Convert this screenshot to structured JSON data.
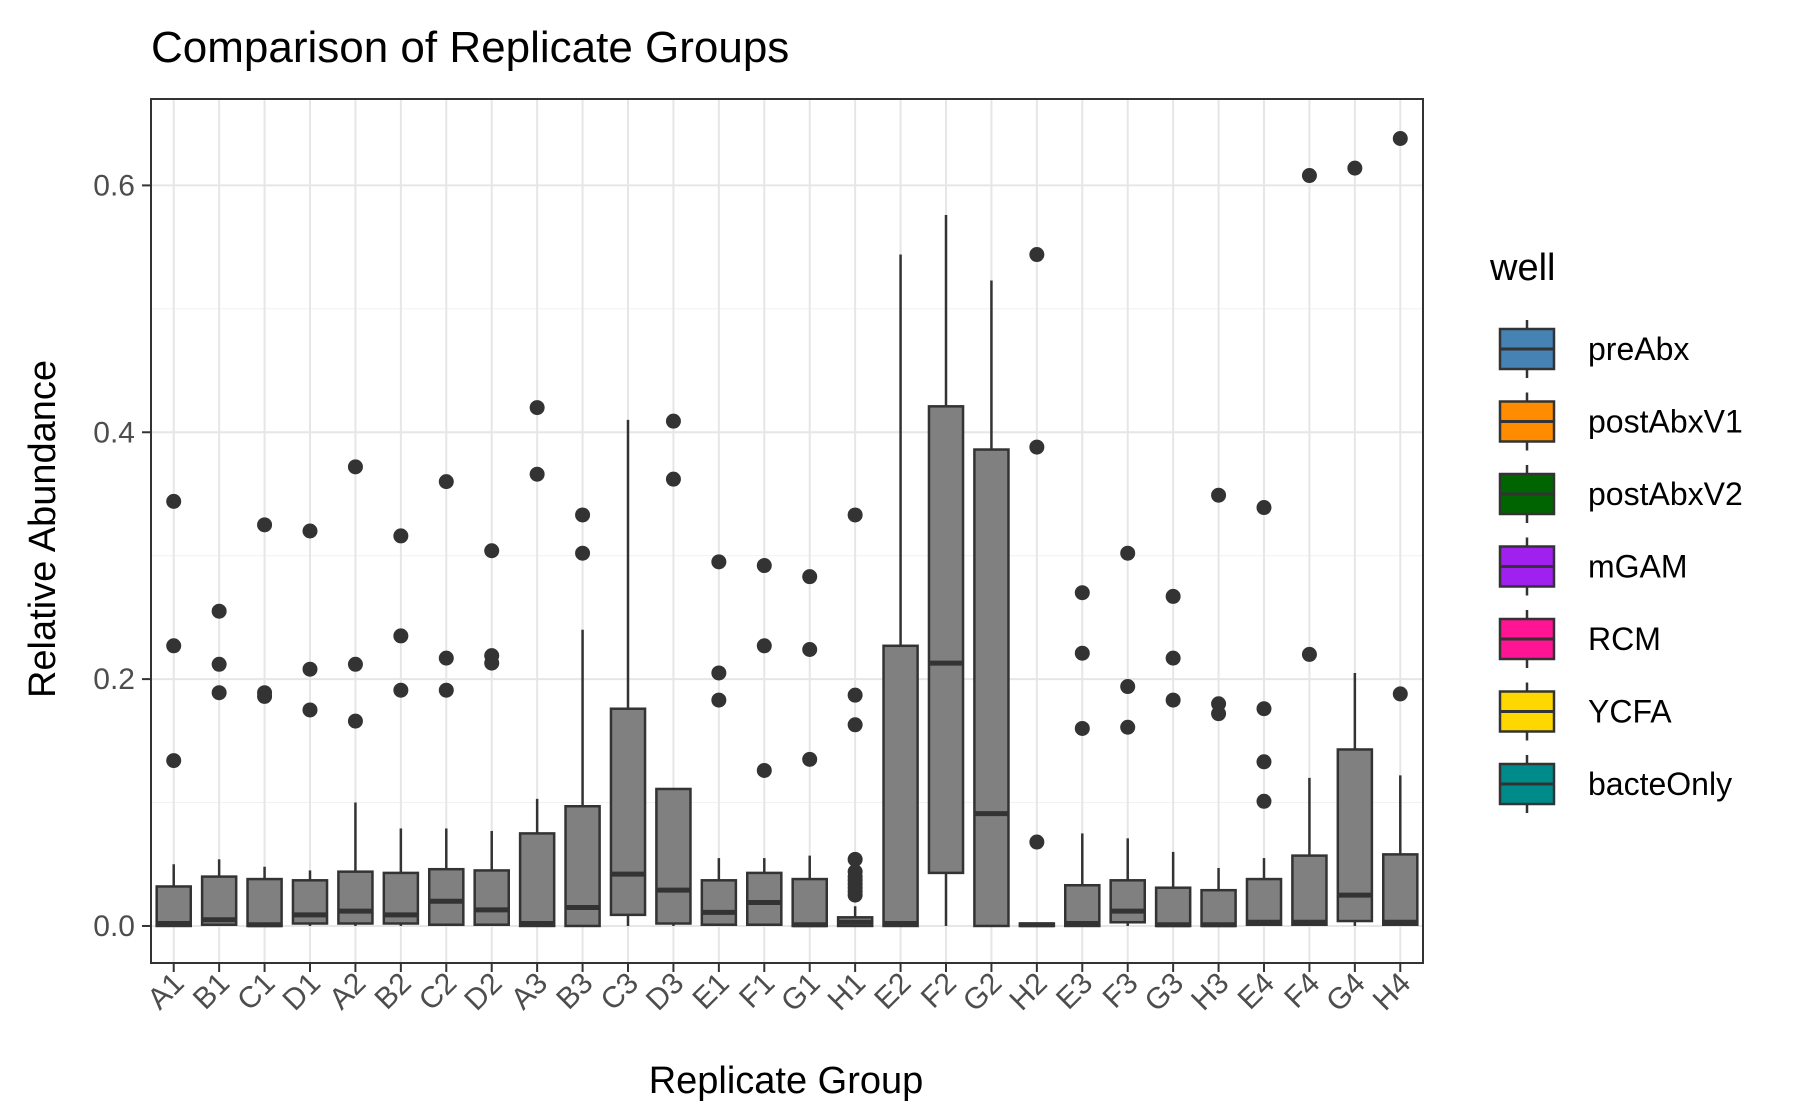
{
  "chart_data": {
    "type": "box",
    "title": "Comparison of Replicate Groups",
    "xlabel": "Replicate Group",
    "ylabel": "Relative Abundance",
    "ylim": [
      -0.03,
      0.67
    ],
    "yticks": [
      0.0,
      0.2,
      0.4,
      0.6
    ],
    "ytick_labels": [
      "0.0",
      "0.2",
      "0.4",
      "0.6"
    ],
    "grid": true,
    "box_color": "#808080",
    "legend": {
      "title": "well",
      "position": "right",
      "items": [
        {
          "label": "preAbx",
          "color": "#4682B4"
        },
        {
          "label": "postAbxV1",
          "color": "#FF8C00"
        },
        {
          "label": "postAbxV2",
          "color": "#006400"
        },
        {
          "label": "mGAM",
          "color": "#A020F0"
        },
        {
          "label": "RCM",
          "color": "#FF1493"
        },
        {
          "label": "YCFA",
          "color": "#FFD700"
        },
        {
          "label": "bacteOnly",
          "color": "#008B8B"
        }
      ]
    },
    "categories": [
      "A1",
      "B1",
      "C1",
      "D1",
      "A2",
      "B2",
      "C2",
      "D2",
      "A3",
      "B3",
      "C3",
      "D3",
      "E1",
      "F1",
      "G1",
      "H1",
      "E2",
      "F2",
      "G2",
      "H2",
      "E3",
      "F3",
      "G3",
      "H3",
      "E4",
      "F4",
      "G4",
      "H4"
    ],
    "boxes": [
      {
        "group": "A1",
        "min": 0.0,
        "q1": 0.0,
        "median": 0.002,
        "q3": 0.032,
        "max": 0.05,
        "outliers": [
          0.134,
          0.227,
          0.344
        ]
      },
      {
        "group": "B1",
        "min": 0.0,
        "q1": 0.001,
        "median": 0.005,
        "q3": 0.04,
        "max": 0.054,
        "outliers": [
          0.189,
          0.212,
          0.255
        ]
      },
      {
        "group": "C1",
        "min": 0.0,
        "q1": 0.0,
        "median": 0.001,
        "q3": 0.038,
        "max": 0.048,
        "outliers": [
          0.186,
          0.189,
          0.325
        ]
      },
      {
        "group": "D1",
        "min": 0.0,
        "q1": 0.002,
        "median": 0.009,
        "q3": 0.037,
        "max": 0.045,
        "outliers": [
          0.175,
          0.208,
          0.32
        ]
      },
      {
        "group": "A2",
        "min": 0.0,
        "q1": 0.002,
        "median": 0.012,
        "q3": 0.044,
        "max": 0.1,
        "outliers": [
          0.166,
          0.212,
          0.372
        ]
      },
      {
        "group": "B2",
        "min": 0.0,
        "q1": 0.002,
        "median": 0.009,
        "q3": 0.043,
        "max": 0.079,
        "outliers": [
          0.191,
          0.235,
          0.316
        ]
      },
      {
        "group": "C2",
        "min": 0.0,
        "q1": 0.001,
        "median": 0.02,
        "q3": 0.046,
        "max": 0.079,
        "outliers": [
          0.191,
          0.217,
          0.36
        ]
      },
      {
        "group": "D2",
        "min": 0.0,
        "q1": 0.001,
        "median": 0.013,
        "q3": 0.045,
        "max": 0.077,
        "outliers": [
          0.213,
          0.219,
          0.304
        ]
      },
      {
        "group": "A3",
        "min": 0.0,
        "q1": 0.0,
        "median": 0.002,
        "q3": 0.075,
        "max": 0.103,
        "outliers": [
          0.366,
          0.42
        ]
      },
      {
        "group": "B3",
        "min": 0.0,
        "q1": 0.0,
        "median": 0.015,
        "q3": 0.097,
        "max": 0.24,
        "outliers": [
          0.302,
          0.333
        ]
      },
      {
        "group": "C3",
        "min": 0.0,
        "q1": 0.009,
        "median": 0.042,
        "q3": 0.176,
        "max": 0.41,
        "outliers": []
      },
      {
        "group": "D3",
        "min": 0.0,
        "q1": 0.002,
        "median": 0.029,
        "q3": 0.111,
        "max": 0.111,
        "outliers": [
          0.362,
          0.409
        ]
      },
      {
        "group": "E1",
        "min": 0.0,
        "q1": 0.001,
        "median": 0.011,
        "q3": 0.037,
        "max": 0.055,
        "outliers": [
          0.183,
          0.205,
          0.295
        ]
      },
      {
        "group": "F1",
        "min": 0.0,
        "q1": 0.001,
        "median": 0.019,
        "q3": 0.043,
        "max": 0.055,
        "outliers": [
          0.126,
          0.227,
          0.292
        ]
      },
      {
        "group": "G1",
        "min": 0.0,
        "q1": 0.0,
        "median": 0.001,
        "q3": 0.038,
        "max": 0.057,
        "outliers": [
          0.135,
          0.224,
          0.283
        ]
      },
      {
        "group": "H1",
        "min": 0.0,
        "q1": 0.0,
        "median": 0.003,
        "q3": 0.007,
        "max": 0.016,
        "outliers": [
          0.025,
          0.028,
          0.031,
          0.034,
          0.037,
          0.04,
          0.044,
          0.054,
          0.163,
          0.187,
          0.333
        ]
      },
      {
        "group": "E2",
        "min": 0.0,
        "q1": 0.0,
        "median": 0.002,
        "q3": 0.227,
        "max": 0.544,
        "outliers": []
      },
      {
        "group": "F2",
        "min": 0.0,
        "q1": 0.043,
        "median": 0.213,
        "q3": 0.421,
        "max": 0.576,
        "outliers": []
      },
      {
        "group": "G2",
        "min": 0.0,
        "q1": 0.0,
        "median": 0.091,
        "q3": 0.386,
        "max": 0.523,
        "outliers": []
      },
      {
        "group": "H2",
        "min": 0.0,
        "q1": 0.0,
        "median": 0.001,
        "q3": 0.002,
        "max": 0.002,
        "outliers": [
          0.068,
          0.388,
          0.544
        ]
      },
      {
        "group": "E3",
        "min": 0.0,
        "q1": 0.0,
        "median": 0.002,
        "q3": 0.033,
        "max": 0.075,
        "outliers": [
          0.16,
          0.221,
          0.27
        ]
      },
      {
        "group": "F3",
        "min": 0.0,
        "q1": 0.003,
        "median": 0.012,
        "q3": 0.037,
        "max": 0.071,
        "outliers": [
          0.161,
          0.194,
          0.302
        ]
      },
      {
        "group": "G3",
        "min": 0.0,
        "q1": 0.0,
        "median": 0.001,
        "q3": 0.031,
        "max": 0.06,
        "outliers": [
          0.183,
          0.217,
          0.267
        ]
      },
      {
        "group": "H3",
        "min": 0.0,
        "q1": 0.0,
        "median": 0.001,
        "q3": 0.029,
        "max": 0.047,
        "outliers": [
          0.172,
          0.18,
          0.349
        ]
      },
      {
        "group": "E4",
        "min": 0.0,
        "q1": 0.001,
        "median": 0.003,
        "q3": 0.038,
        "max": 0.055,
        "outliers": [
          0.101,
          0.133,
          0.176,
          0.339
        ]
      },
      {
        "group": "F4",
        "min": 0.0,
        "q1": 0.001,
        "median": 0.003,
        "q3": 0.057,
        "max": 0.12,
        "outliers": [
          0.22,
          0.608
        ]
      },
      {
        "group": "G4",
        "min": 0.0,
        "q1": 0.004,
        "median": 0.025,
        "q3": 0.143,
        "max": 0.205,
        "outliers": [
          0.614
        ]
      },
      {
        "group": "H4",
        "min": 0.0,
        "q1": 0.001,
        "median": 0.003,
        "q3": 0.058,
        "max": 0.122,
        "outliers": [
          0.188,
          0.638
        ]
      }
    ]
  }
}
